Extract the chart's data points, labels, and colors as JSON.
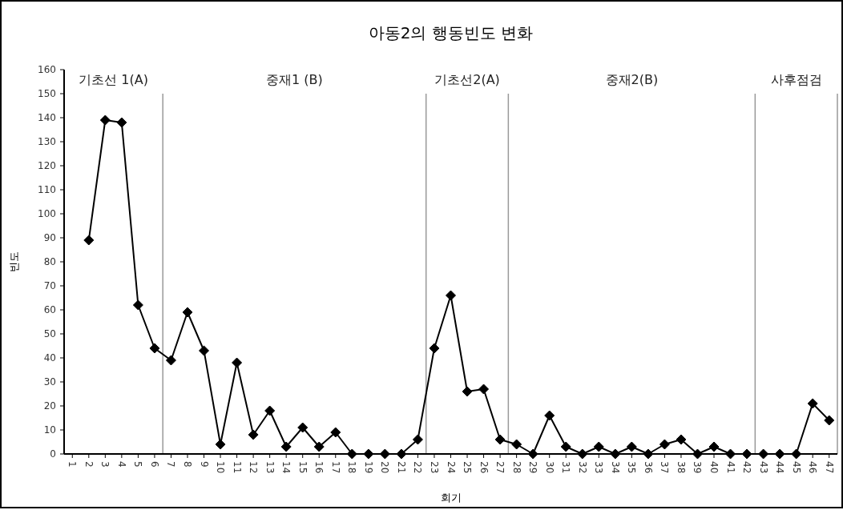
{
  "chart_data": {
    "type": "line",
    "title": "아동2의 행동빈도 변화",
    "xlabel": "회기",
    "ylabel": "빈도",
    "x": [
      2,
      3,
      4,
      5,
      6,
      7,
      8,
      9,
      10,
      11,
      12,
      13,
      14,
      15,
      16,
      17,
      18,
      19,
      20,
      21,
      22,
      23,
      24,
      25,
      26,
      27,
      28,
      29,
      30,
      31,
      32,
      33,
      34,
      35,
      36,
      37,
      38,
      39,
      40,
      41,
      42,
      43,
      44,
      45,
      46,
      47
    ],
    "xlim": [
      0.5,
      47.5
    ],
    "xticks": [
      1,
      2,
      3,
      4,
      5,
      6,
      7,
      8,
      9,
      10,
      11,
      12,
      13,
      14,
      15,
      16,
      17,
      18,
      19,
      20,
      21,
      22,
      23,
      24,
      25,
      26,
      27,
      28,
      29,
      30,
      31,
      32,
      33,
      34,
      35,
      36,
      37,
      38,
      39,
      40,
      41,
      42,
      43,
      44,
      45,
      46,
      47
    ],
    "ylim": [
      0,
      160
    ],
    "yticks": [
      0,
      10,
      20,
      30,
      40,
      50,
      60,
      70,
      80,
      90,
      100,
      110,
      120,
      130,
      140,
      150,
      160
    ],
    "series": [
      {
        "color": "#000000",
        "values": [
          89,
          139,
          138,
          62,
          44,
          39,
          59,
          43,
          4,
          38,
          8,
          18,
          3,
          11,
          3,
          9,
          0,
          0,
          0,
          0,
          6,
          44,
          66,
          26,
          27,
          6,
          4,
          0,
          16,
          3,
          0,
          3,
          0,
          3,
          0,
          4,
          6,
          0,
          3,
          0,
          0,
          0,
          0,
          0,
          21,
          14
        ]
      }
    ],
    "marker": "diamond",
    "line_style": "solid",
    "ref_lines": [
      {
        "axis": "x",
        "value": 6.5,
        "color": "#999999"
      },
      {
        "axis": "x",
        "value": 22.5,
        "color": "#999999"
      },
      {
        "axis": "x",
        "value": 27.5,
        "color": "#999999"
      },
      {
        "axis": "x",
        "value": 42.5,
        "color": "#999999"
      },
      {
        "axis": "x",
        "value": 47.5,
        "color": "#999999"
      }
    ],
    "annotations": [
      "기초선 1(A)",
      "중재1 (B)",
      "기초선2(A)",
      "중재2(B)",
      "사후점검"
    ]
  }
}
